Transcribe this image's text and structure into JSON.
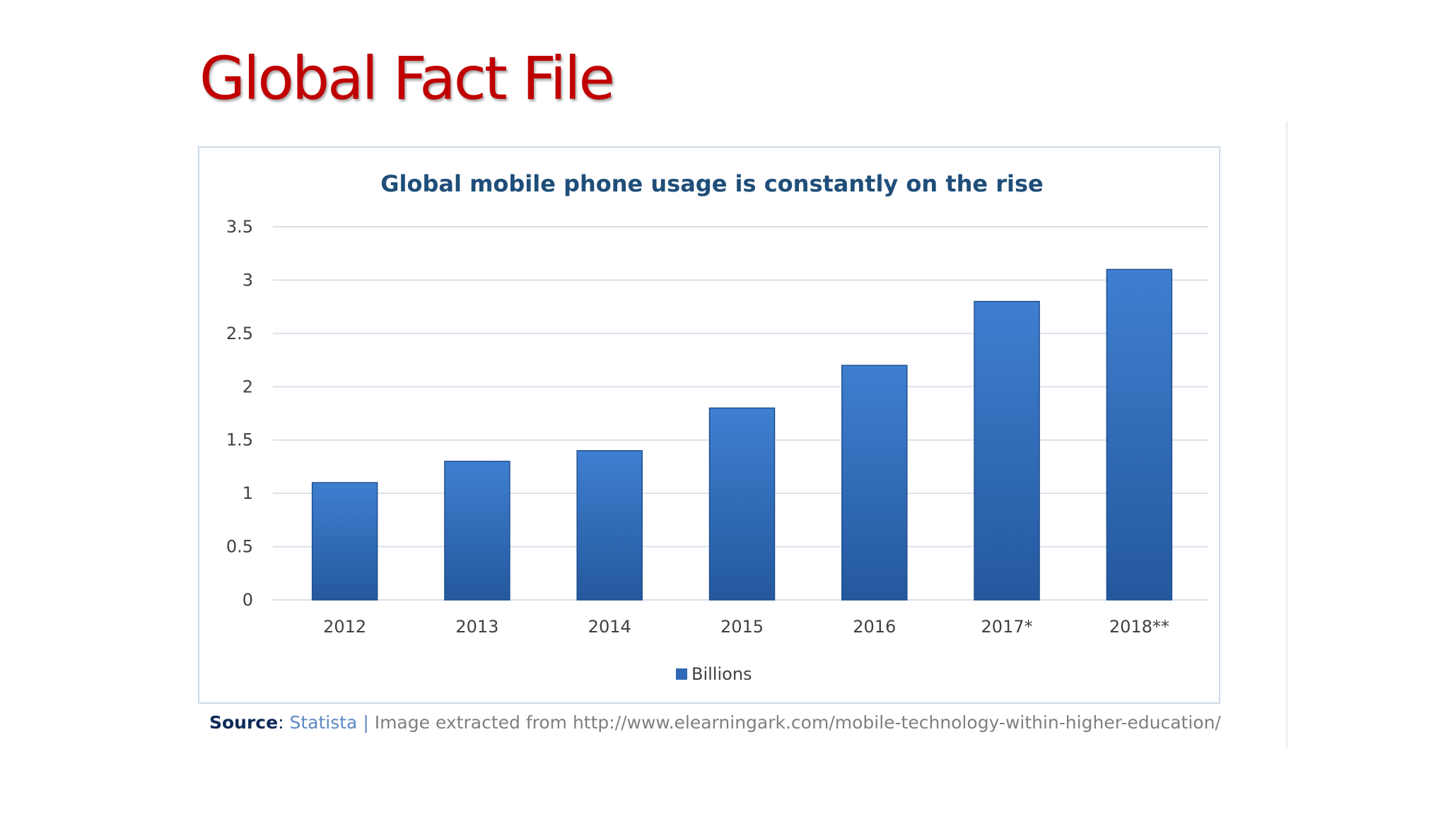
{
  "slide": {
    "title": "Global Fact File"
  },
  "source": {
    "label": "Source",
    "colon": ":",
    "name": "Statista",
    "separator": " | ",
    "text": "Image extracted from http://www.elearningark.com/mobile-technology-within-higher-education/"
  },
  "colors": {
    "title": "#c00000",
    "bar_top": "#3f7fd0",
    "bar_bottom": "#24589e",
    "chart_title": "#1f4e79",
    "gridline": "#d9e1ea",
    "axis_text": "#404040"
  },
  "chart_data": {
    "type": "bar",
    "title": "Global mobile phone usage is constantly on the rise",
    "categories": [
      "2012",
      "2013",
      "2014",
      "2015",
      "2016",
      "2017*",
      "2018**"
    ],
    "series": [
      {
        "name": "Billions",
        "values": [
          1.1,
          1.3,
          1.4,
          1.8,
          2.2,
          2.8,
          3.1
        ]
      }
    ],
    "yticks": [
      "0",
      "0.5",
      "1",
      "1.5",
      "2",
      "2.5",
      "3",
      "3.5"
    ],
    "ylim": [
      0,
      3.5
    ],
    "grid": true,
    "legend": "bottom-center"
  }
}
